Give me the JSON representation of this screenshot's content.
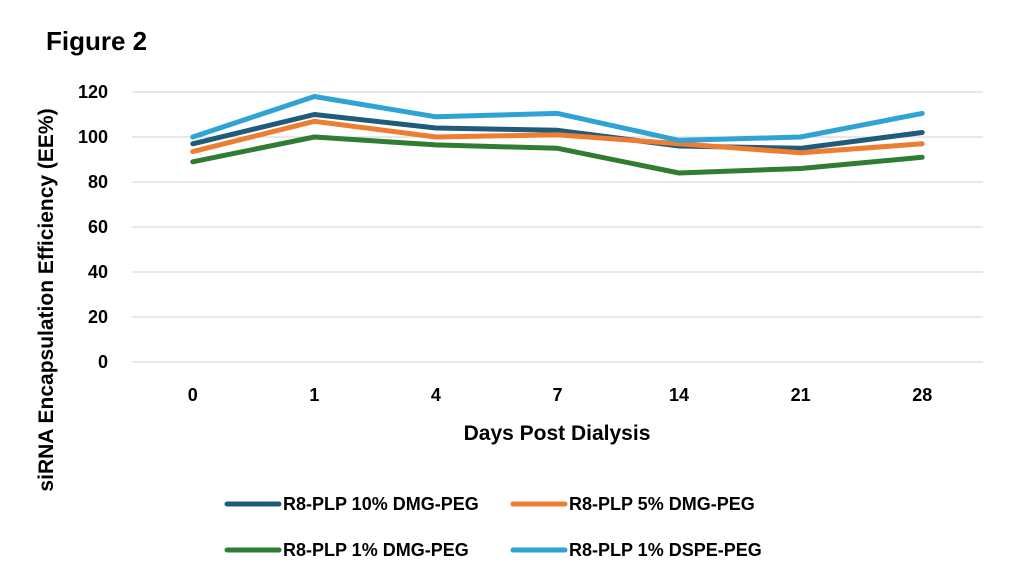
{
  "figure_label": "Figure 2",
  "chart_data": {
    "type": "line",
    "title": "",
    "xlabel": "Days Post Dialysis",
    "ylabel": "siRNA Encapsulation Efficiency (EE%)",
    "categories": [
      "0",
      "1",
      "4",
      "7",
      "14",
      "21",
      "28"
    ],
    "ylim": [
      0,
      120
    ],
    "yticks": [
      0,
      20,
      40,
      60,
      80,
      100,
      120
    ],
    "grid": true,
    "legend_position": "bottom",
    "series": [
      {
        "name": "R8-PLP 10% DMG-PEG",
        "color": "#1f5b7a",
        "values": [
          97,
          110,
          104,
          103,
          96,
          95,
          102
        ]
      },
      {
        "name": "R8-PLP 5% DMG-PEG",
        "color": "#ed7d31",
        "values": [
          93.5,
          107,
          100,
          101,
          97,
          93,
          97
        ]
      },
      {
        "name": "R8-PLP 1% DMG-PEG",
        "color": "#2e7d32",
        "values": [
          89,
          100,
          96.5,
          95,
          84,
          86,
          91
        ]
      },
      {
        "name": "R8-PLP 1% DSPE-PEG",
        "color": "#2ea3d5",
        "values": [
          100,
          118,
          109,
          110.5,
          98.5,
          100,
          110.5
        ]
      }
    ]
  }
}
